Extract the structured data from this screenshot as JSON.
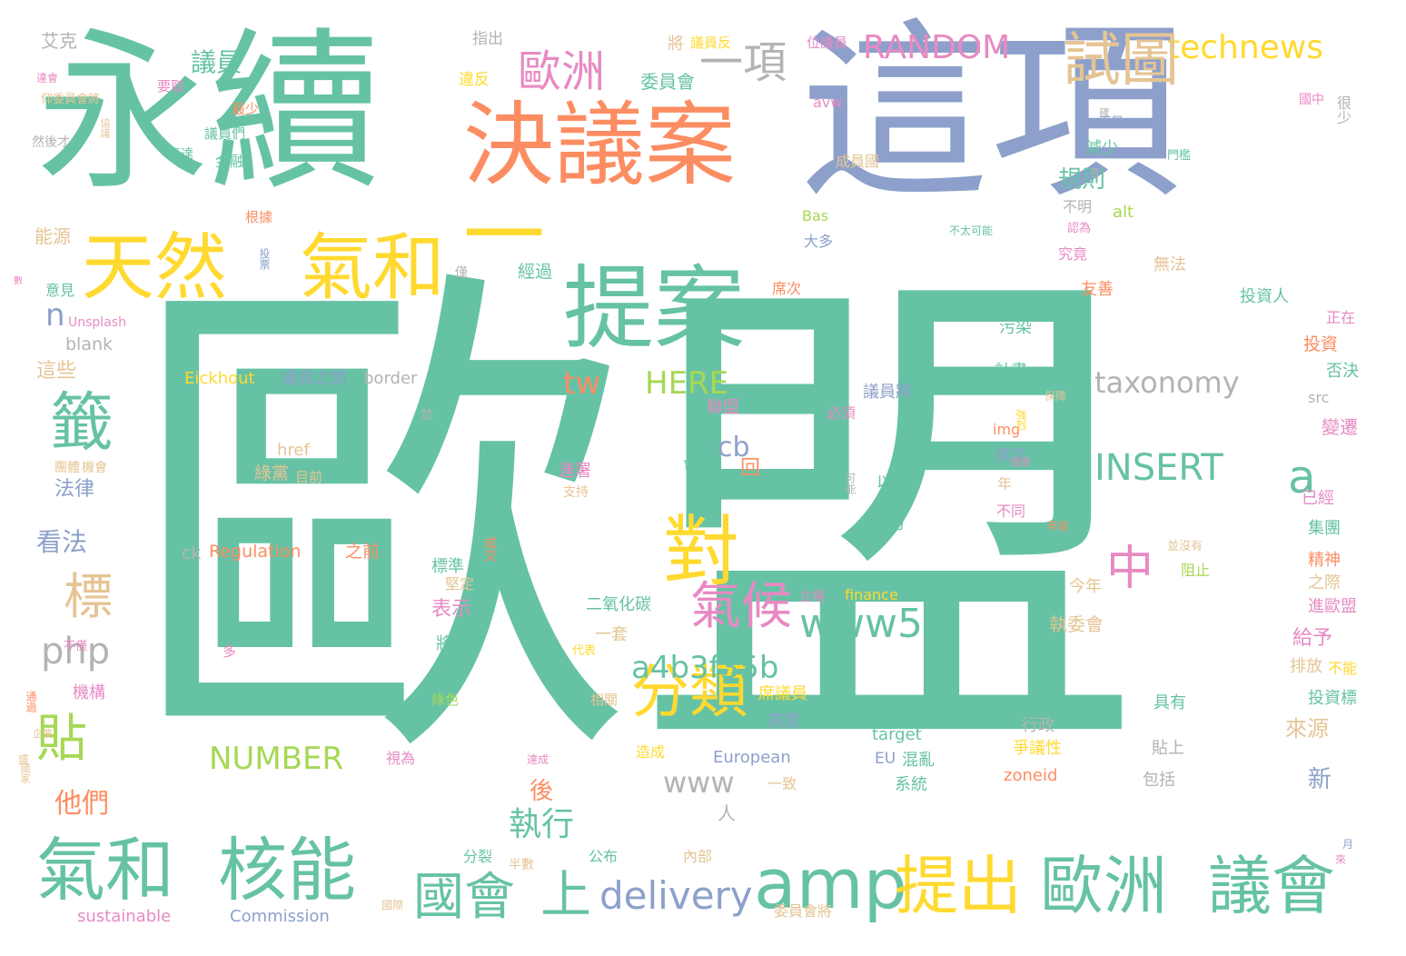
{
  "palette": {
    "green": "#66c2a5",
    "orange": "#fc8d62",
    "blue": "#8da0cb",
    "pink": "#e78ac3",
    "lime": "#a6d854",
    "yellow": "#ffd92f",
    "tan": "#e5c494",
    "gray": "#b3b3b3"
  },
  "words": [
    {
      "text": "歐盟",
      "color": "green"
    },
    {
      "text": "永續",
      "color": "green"
    },
    {
      "text": "這項",
      "color": "blue"
    },
    {
      "text": "決議案",
      "color": "orange"
    },
    {
      "text": "一",
      "color": "yellow"
    },
    {
      "text": "提案",
      "color": "green"
    },
    {
      "text": "天然",
      "color": "yellow"
    },
    {
      "text": "氣和",
      "color": "yellow"
    },
    {
      "text": "氣和",
      "color": "green"
    },
    {
      "text": "核能",
      "color": "green"
    },
    {
      "text": "amp",
      "color": "green"
    },
    {
      "text": "提出",
      "color": "yellow"
    },
    {
      "text": "歐洲",
      "color": "green"
    },
    {
      "text": "議會",
      "color": "green"
    },
    {
      "text": "國會",
      "color": "green"
    },
    {
      "text": "上",
      "color": "green"
    },
    {
      "text": "delivery",
      "color": "blue"
    },
    {
      "text": "對",
      "color": "yellow"
    },
    {
      "text": "分類",
      "color": "yellow"
    },
    {
      "text": "氣候",
      "color": "pink"
    },
    {
      "text": "www5",
      "color": "green"
    },
    {
      "text": "a4b3f35b",
      "color": "green"
    },
    {
      "text": "RANDOM",
      "color": "pink"
    },
    {
      "text": "technews",
      "color": "yellow"
    },
    {
      "text": "試圖",
      "color": "tan"
    },
    {
      "text": "一項",
      "color": "gray"
    },
    {
      "text": "歐洲",
      "color": "pink"
    },
    {
      "text": "議員",
      "color": "green"
    },
    {
      "text": "籤",
      "color": "green"
    },
    {
      "text": "標",
      "color": "tan"
    },
    {
      "text": "php",
      "color": "gray"
    },
    {
      "text": "貼",
      "color": "lime"
    },
    {
      "text": "NUMBER",
      "color": "lime"
    },
    {
      "text": "www",
      "color": "gray"
    },
    {
      "text": "HERE",
      "color": "lime"
    },
    {
      "text": "tw",
      "color": "orange"
    },
    {
      "text": "cb",
      "color": "blue"
    },
    {
      "text": "a",
      "color": "green"
    },
    {
      "text": "中",
      "color": "pink"
    },
    {
      "text": "INSERT",
      "color": "green"
    },
    {
      "text": "taxonomy",
      "color": "gray"
    },
    {
      "text": "n",
      "color": "blue"
    },
    {
      "text": "執行",
      "color": "green"
    },
    {
      "text": "他們",
      "color": "orange"
    },
    {
      "text": "規則",
      "color": "green"
    },
    {
      "text": "艾克",
      "color": "gray"
    },
    {
      "text": "指出",
      "color": "gray"
    },
    {
      "text": "將",
      "color": "tan"
    },
    {
      "text": "議員反",
      "color": "yellow"
    },
    {
      "text": "位議員",
      "color": "pink"
    },
    {
      "text": "違反",
      "color": "yellow"
    },
    {
      "text": "委員會",
      "color": "green"
    },
    {
      "text": "要取",
      "color": "pink"
    },
    {
      "text": "表達",
      "color": "green"
    },
    {
      "text": "最少",
      "color": "orange"
    },
    {
      "text": "議員們",
      "color": "green"
    },
    {
      "text": "金融",
      "color": "green"
    },
    {
      "text": "成員國",
      "color": "tan"
    },
    {
      "text": "avw",
      "color": "pink"
    },
    {
      "text": "根據",
      "color": "orange"
    },
    {
      "text": "能源",
      "color": "tan"
    },
    {
      "text": "意見",
      "color": "green"
    },
    {
      "text": "Unsplash",
      "color": "pink"
    },
    {
      "text": "blank",
      "color": "gray"
    },
    {
      "text": "這些",
      "color": "tan"
    },
    {
      "text": "Eickhout",
      "color": "yellow"
    },
    {
      "text": "議員之間",
      "color": "blue"
    },
    {
      "text": "border",
      "color": "gray"
    },
    {
      "text": "法律",
      "color": "blue"
    },
    {
      "text": "看法",
      "color": "blue"
    },
    {
      "text": "Regulation",
      "color": "orange"
    },
    {
      "text": "之前",
      "color": "orange"
    },
    {
      "text": "ck",
      "color": "gray"
    },
    {
      "text": "href",
      "color": "tan"
    },
    {
      "text": "綠黨",
      "color": "tan"
    },
    {
      "text": "目前",
      "color": "tan"
    },
    {
      "text": "經過",
      "color": "green"
    },
    {
      "text": "席次",
      "color": "orange"
    },
    {
      "text": "污染",
      "color": "green"
    },
    {
      "text": "計畫",
      "color": "green"
    },
    {
      "text": "友善",
      "color": "orange"
    },
    {
      "text": "無法",
      "color": "tan"
    },
    {
      "text": "投資人",
      "color": "green"
    },
    {
      "text": "投資",
      "color": "orange"
    },
    {
      "text": "正在",
      "color": "pink"
    },
    {
      "text": "否決",
      "color": "green"
    },
    {
      "text": "src",
      "color": "gray"
    },
    {
      "text": "變遷",
      "color": "pink"
    },
    {
      "text": "已經",
      "color": "pink"
    },
    {
      "text": "集團",
      "color": "green"
    },
    {
      "text": "精神",
      "color": "orange"
    },
    {
      "text": "之際",
      "color": "tan"
    },
    {
      "text": "進歐盟",
      "color": "pink"
    },
    {
      "text": "排放",
      "color": "tan"
    },
    {
      "text": "不能",
      "color": "yellow"
    },
    {
      "text": "投資標",
      "color": "green"
    },
    {
      "text": "給予",
      "color": "pink"
    },
    {
      "text": "來源",
      "color": "tan"
    },
    {
      "text": "新",
      "color": "blue"
    },
    {
      "text": "議員將",
      "color": "blue"
    },
    {
      "text": "聯盟",
      "color": "pink"
    },
    {
      "text": "必須",
      "color": "pink"
    },
    {
      "text": "以應",
      "color": "green"
    },
    {
      "text": "努力",
      "color": "green"
    },
    {
      "text": "年",
      "color": "tan"
    },
    {
      "text": "不同",
      "color": "pink"
    },
    {
      "text": "條文",
      "color": "blue"
    },
    {
      "text": "img",
      "color": "orange"
    },
    {
      "text": "立場",
      "color": "pink"
    },
    {
      "text": "finance",
      "color": "yellow"
    },
    {
      "text": "今年",
      "color": "tan"
    },
    {
      "text": "執委會",
      "color": "tan"
    },
    {
      "text": "阻止",
      "color": "lime"
    },
    {
      "text": "表示",
      "color": "pink"
    },
    {
      "text": "將近",
      "color": "green"
    },
    {
      "text": "爭論",
      "color": "green"
    },
    {
      "text": "二氧化碳",
      "color": "green"
    },
    {
      "text": "一套",
      "color": "tan"
    },
    {
      "text": "標準",
      "color": "green"
    },
    {
      "text": "堅定",
      "color": "tan"
    },
    {
      "text": "連署",
      "color": "pink"
    },
    {
      "text": "支持",
      "color": "tan"
    },
    {
      "text": "浩特",
      "color": "green"
    },
    {
      "text": "target",
      "color": "green"
    },
    {
      "text": "EU",
      "color": "blue"
    },
    {
      "text": "混亂",
      "color": "green"
    },
    {
      "text": "系統",
      "color": "green"
    },
    {
      "text": "行政",
      "color": "gray"
    },
    {
      "text": "爭議性",
      "color": "yellow"
    },
    {
      "text": "zoneid",
      "color": "orange"
    },
    {
      "text": "具有",
      "color": "green"
    },
    {
      "text": "貼上",
      "color": "gray"
    },
    {
      "text": "包括",
      "color": "gray"
    },
    {
      "text": "European",
      "color": "blue"
    },
    {
      "text": "高度",
      "color": "blue"
    },
    {
      "text": "席議員",
      "color": "yellow"
    },
    {
      "text": "Commission",
      "color": "blue"
    },
    {
      "text": "sustainable",
      "color": "pink"
    },
    {
      "text": "委員會將",
      "color": "tan"
    },
    {
      "text": "公布",
      "color": "green"
    },
    {
      "text": "分裂",
      "color": "green"
    },
    {
      "text": "半數",
      "color": "tan"
    },
    {
      "text": "內部",
      "color": "tan"
    },
    {
      "text": "人",
      "color": "gray"
    },
    {
      "text": "後",
      "color": "orange"
    },
    {
      "text": "機構",
      "color": "pink"
    },
    {
      "text": "視為",
      "color": "pink"
    },
    {
      "text": "造成",
      "color": "yellow"
    },
    {
      "text": "一致",
      "color": "tan"
    },
    {
      "text": "綠色",
      "color": "lime"
    },
    {
      "text": "相關",
      "color": "tan"
    },
    {
      "text": "代表",
      "color": "yellow"
    },
    {
      "text": "回",
      "color": "orange"
    },
    {
      "text": "alt",
      "color": "lime"
    },
    {
      "text": "Bas",
      "color": "lime"
    },
    {
      "text": "大多",
      "color": "blue"
    },
    {
      "text": "究竟",
      "color": "pink"
    },
    {
      "text": "不明",
      "color": "gray"
    },
    {
      "text": "減少",
      "color": "green"
    },
    {
      "text": "很少",
      "color": "gray"
    },
    {
      "text": "然後才",
      "color": "gray"
    },
    {
      "text": "仰委員會將",
      "color": "tan"
    },
    {
      "text": "不太可能",
      "color": "green"
    },
    {
      "text": "下個",
      "color": "blue"
    },
    {
      "text": "門檻",
      "color": "green"
    },
    {
      "text": "國中",
      "color": "pink"
    },
    {
      "text": "確",
      "color": "gray"
    },
    {
      "text": "保障",
      "color": "tan"
    },
    {
      "text": "機會",
      "color": "tan"
    },
    {
      "text": "團體",
      "color": "tan"
    },
    {
      "text": "年前",
      "color": "orange"
    },
    {
      "text": "並沒有",
      "color": "tan"
    },
    {
      "text": "可能",
      "color": "gray"
    },
    {
      "text": "並",
      "color": "gray"
    },
    {
      "text": "僅",
      "color": "gray"
    },
    {
      "text": "投票",
      "color": "blue"
    },
    {
      "text": "強烈",
      "color": "yellow"
    },
    {
      "text": "來",
      "color": "pink"
    },
    {
      "text": "月",
      "color": "blue"
    },
    {
      "text": "認為",
      "color": "pink"
    },
    {
      "text": "達成",
      "color": "pink"
    },
    {
      "text": "國際",
      "color": "tan"
    },
    {
      "text": "多",
      "color": "pink"
    },
    {
      "text": "數",
      "color": "pink"
    },
    {
      "text": "憑證",
      "color": "pink"
    },
    {
      "text": "會",
      "color": "green"
    },
    {
      "text": "盛",
      "color": "tan"
    },
    {
      "text": "國家",
      "color": "tan"
    },
    {
      "text": "通過",
      "color": "orange"
    },
    {
      "text": "成交",
      "color": "orange"
    },
    {
      "text": "企業",
      "color": "tan"
    },
    {
      "text": "不僅",
      "color": "pink"
    },
    {
      "text": "協議",
      "color": "tan"
    },
    {
      "text": "達會",
      "color": "pink"
    },
    {
      "text": "否",
      "color": "gray"
    }
  ]
}
